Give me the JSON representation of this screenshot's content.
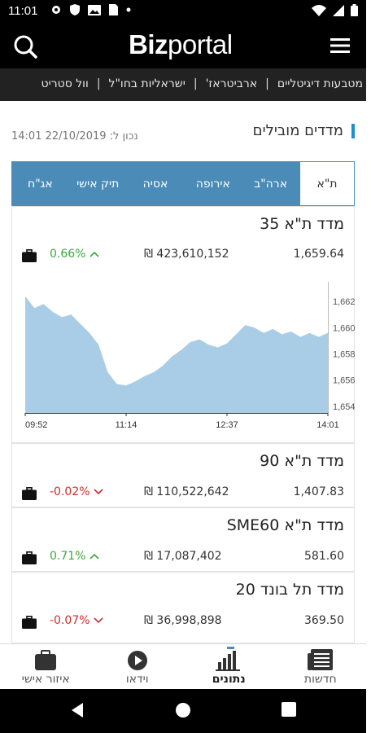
{
  "status_bar": {
    "time": "11:01"
  },
  "app": {
    "logo_bold": "Biz",
    "logo_light": "portal"
  },
  "categories": [
    "וול סטריט",
    "ישראליות בחו\"ל",
    "ארביטראז'",
    "מטבעות דיגיטליים"
  ],
  "section": {
    "title": "מדדים מובילים",
    "updated": "נכון ל: 22/10/2019 14:01"
  },
  "tabs": [
    "ת\"א",
    "ארה\"ב",
    "אירופה",
    "אסיה",
    "תיק אישי",
    "אג\"ח"
  ],
  "indices": [
    {
      "name": "מדד ת\"א 35",
      "value": "1,659.64",
      "turnover": "₪ 423,610,152",
      "change": "0.66%",
      "direction": "up"
    },
    {
      "name": "מדד ת\"א 90",
      "value": "1,407.83",
      "turnover": "₪ 110,522,642",
      "change": "-0.02%",
      "direction": "down"
    },
    {
      "name": "מדד ת\"א SME60",
      "value": "581.60",
      "turnover": "₪ 17,087,402",
      "change": "0.71%",
      "direction": "up"
    },
    {
      "name": "מדד תל בונד 20",
      "value": "369.50",
      "turnover": "₪ 36,998,898",
      "change": "-0.07%",
      "direction": "down"
    }
  ],
  "bottom_nav": [
    {
      "label": "חדשות",
      "icon": "news-icon"
    },
    {
      "label": "נתונים",
      "icon": "bar-chart-icon"
    },
    {
      "label": "וידאו",
      "icon": "play-icon"
    },
    {
      "label": "איזור אישי",
      "icon": "briefcase-icon"
    }
  ],
  "colors": {
    "tab_bar": "#4a8bb8",
    "chart_fill": "#a9cde6",
    "up": "#3aaa3a",
    "down": "#d12b2b"
  },
  "chart_data": {
    "type": "area",
    "title": "",
    "xlabel": "",
    "ylabel": "",
    "x_ticks": [
      "09:52",
      "11:14",
      "12:37",
      "14:01"
    ],
    "y_ticks": [
      1654,
      1656,
      1658,
      1660,
      1662
    ],
    "ylim": [
      1653.5,
      1663.0
    ],
    "grid": false,
    "series": [
      {
        "x": [
          "09:52",
          "10:00",
          "10:08",
          "10:16",
          "10:24",
          "10:32",
          "10:40",
          "10:48",
          "10:56",
          "11:04",
          "11:10",
          "11:14",
          "11:22",
          "11:30",
          "11:38",
          "11:46",
          "11:54",
          "12:02",
          "12:10",
          "12:18",
          "12:26",
          "12:34",
          "12:37",
          "12:45",
          "12:53",
          "13:01",
          "13:09",
          "13:17",
          "13:25",
          "13:33",
          "13:41",
          "13:49",
          "13:57",
          "14:01"
        ],
        "values": [
          1662.4,
          1661.5,
          1661.8,
          1661.2,
          1660.8,
          1661.0,
          1660.3,
          1659.6,
          1658.7,
          1656.6,
          1655.7,
          1655.6,
          1655.9,
          1656.3,
          1656.6,
          1657.1,
          1657.8,
          1658.3,
          1658.9,
          1659.1,
          1658.7,
          1658.5,
          1658.8,
          1659.5,
          1660.2,
          1660.0,
          1659.6,
          1659.9,
          1659.5,
          1659.7,
          1659.3,
          1659.6,
          1659.3,
          1659.6
        ]
      }
    ]
  }
}
